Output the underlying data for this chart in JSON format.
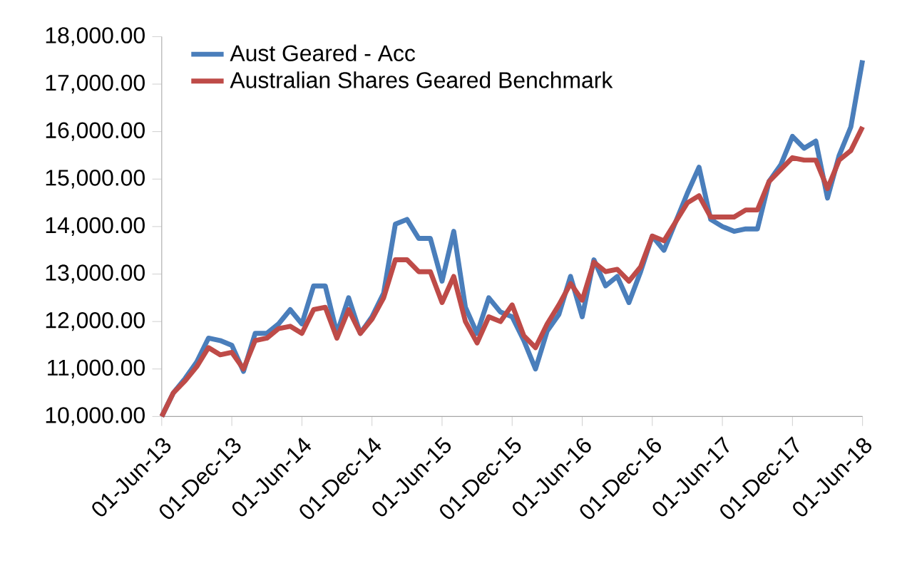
{
  "chart_data": {
    "type": "line",
    "x": [
      "2013-06-01",
      "2013-07-01",
      "2013-08-01",
      "2013-09-01",
      "2013-10-01",
      "2013-11-01",
      "2013-12-01",
      "2014-01-01",
      "2014-02-01",
      "2014-03-01",
      "2014-04-01",
      "2014-05-01",
      "2014-06-01",
      "2014-07-01",
      "2014-08-01",
      "2014-09-01",
      "2014-10-01",
      "2014-11-01",
      "2014-12-01",
      "2015-01-01",
      "2015-02-01",
      "2015-03-01",
      "2015-04-01",
      "2015-05-01",
      "2015-06-01",
      "2015-07-01",
      "2015-08-01",
      "2015-09-01",
      "2015-10-01",
      "2015-11-01",
      "2015-12-01",
      "2016-01-01",
      "2016-02-01",
      "2016-03-01",
      "2016-04-01",
      "2016-05-01",
      "2016-06-01",
      "2016-07-01",
      "2016-08-01",
      "2016-09-01",
      "2016-10-01",
      "2016-11-01",
      "2016-12-01",
      "2017-01-01",
      "2017-02-01",
      "2017-03-01",
      "2017-04-01",
      "2017-05-01",
      "2017-06-01",
      "2017-07-01",
      "2017-08-01",
      "2017-09-01",
      "2017-10-01",
      "2017-11-01",
      "2017-12-01",
      "2018-01-01",
      "2018-02-01",
      "2018-03-01",
      "2018-04-01",
      "2018-05-01",
      "2018-06-01"
    ],
    "series": [
      {
        "name": "Aust Geared - Acc",
        "color": "#4a7ebb",
        "values": [
          10000,
          10500,
          10800,
          11150,
          11650,
          11600,
          11500,
          10950,
          11750,
          11750,
          11950,
          12250,
          11950,
          12750,
          12750,
          11750,
          12500,
          11750,
          12100,
          12600,
          14050,
          14150,
          13750,
          13750,
          12850,
          13900,
          12300,
          11750,
          12500,
          12200,
          12100,
          11600,
          11000,
          11800,
          12150,
          12950,
          12100,
          13300,
          12750,
          12950,
          12400,
          13050,
          13800,
          13500,
          14100,
          14700,
          15250,
          14150,
          14000,
          13900,
          13950,
          13950,
          14950,
          15300,
          15900,
          15650,
          15800,
          14600,
          15500,
          16100,
          17500
        ]
      },
      {
        "name": "Australian Shares Geared Benchmark",
        "color": "#be4b48",
        "values": [
          10000,
          10500,
          10750,
          11050,
          11450,
          11300,
          11350,
          11000,
          11600,
          11650,
          11850,
          11900,
          11750,
          12250,
          12300,
          11650,
          12250,
          11750,
          12050,
          12500,
          13300,
          13300,
          13050,
          13050,
          12400,
          12950,
          12000,
          11550,
          12100,
          12000,
          12350,
          11700,
          11450,
          11950,
          12350,
          12800,
          12450,
          13250,
          13050,
          13100,
          12850,
          13150,
          13800,
          13700,
          14100,
          14500,
          14650,
          14200,
          14200,
          14200,
          14350,
          14350,
          14950,
          15200,
          15450,
          15400,
          15400,
          14800,
          15400,
          15600,
          16100
        ]
      }
    ],
    "xlim": [
      "2013-06-01",
      "2018-06-01"
    ],
    "xticks": [
      {
        "value": "2013-06-01",
        "label": "01-Jun-13"
      },
      {
        "value": "2013-12-01",
        "label": "01-Dec-13"
      },
      {
        "value": "2014-06-01",
        "label": "01-Jun-14"
      },
      {
        "value": "2014-12-01",
        "label": "01-Dec-14"
      },
      {
        "value": "2015-06-01",
        "label": "01-Jun-15"
      },
      {
        "value": "2015-12-01",
        "label": "01-Dec-15"
      },
      {
        "value": "2016-06-01",
        "label": "01-Jun-16"
      },
      {
        "value": "2016-12-01",
        "label": "01-Dec-16"
      },
      {
        "value": "2017-06-01",
        "label": "01-Jun-17"
      },
      {
        "value": "2017-12-01",
        "label": "01-Dec-17"
      },
      {
        "value": "2018-06-01",
        "label": "01-Jun-18"
      }
    ],
    "ylim": [
      10000,
      18000
    ],
    "yticks": [
      {
        "value": 10000,
        "label": "10,000.00"
      },
      {
        "value": 11000,
        "label": "11,000.00"
      },
      {
        "value": 12000,
        "label": "12,000.00"
      },
      {
        "value": 13000,
        "label": "13,000.00"
      },
      {
        "value": 14000,
        "label": "14,000.00"
      },
      {
        "value": 15000,
        "label": "15,000.00"
      },
      {
        "value": 16000,
        "label": "16,000.00"
      },
      {
        "value": 17000,
        "label": "17,000.00"
      },
      {
        "value": 18000,
        "label": "18,000.00"
      }
    ],
    "grid": false,
    "legend": "top left",
    "marker": "none",
    "line_style": "solid"
  }
}
